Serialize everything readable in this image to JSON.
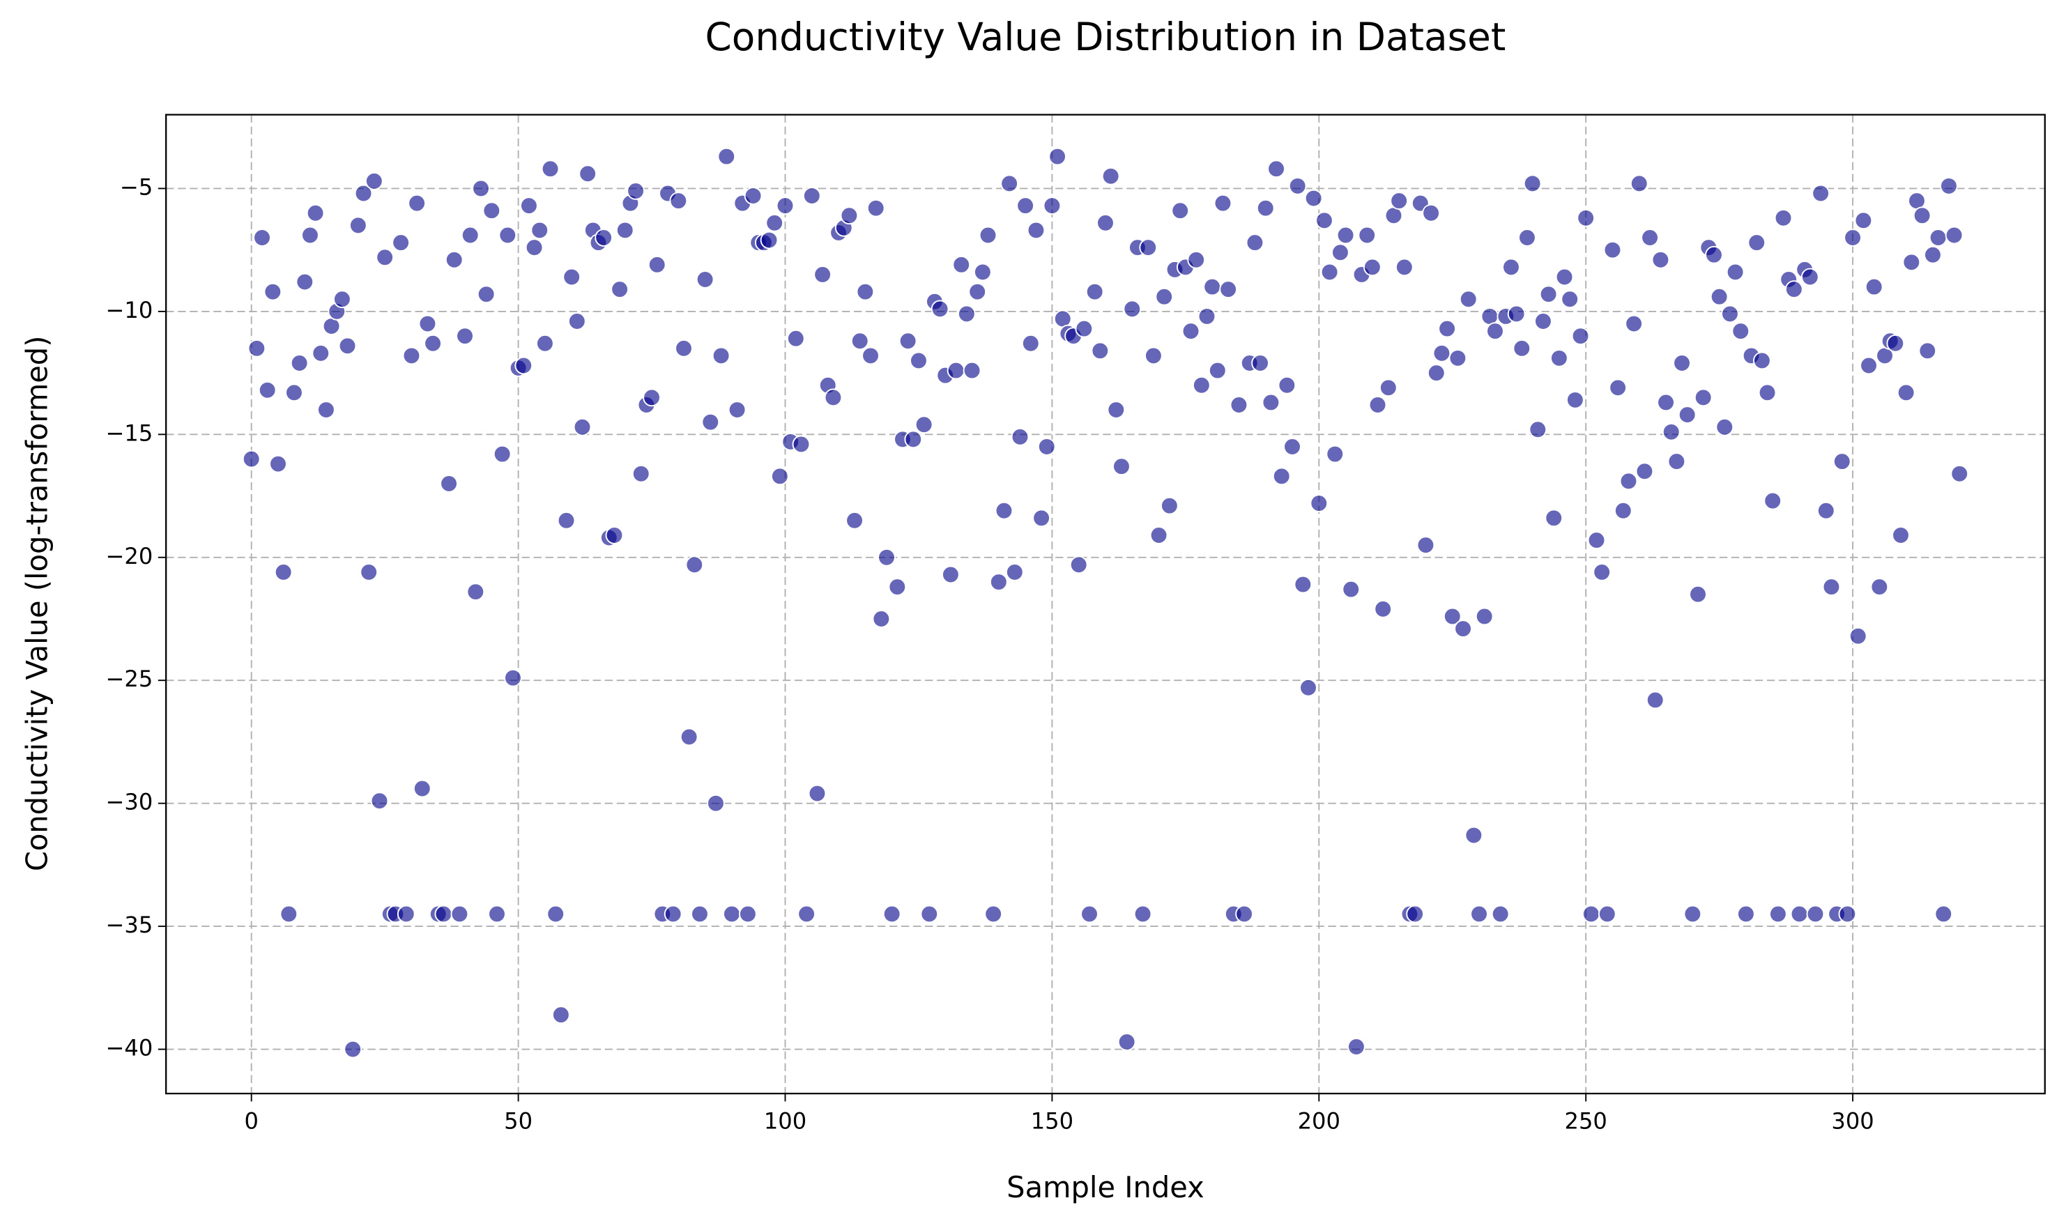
{
  "chart_data": {
    "type": "scatter",
    "title": "Conductivity Value Distribution in Dataset",
    "xlabel": "Sample Index",
    "ylabel": "Conductivity Value (log-transformed)",
    "color": "#00008b",
    "grid": true,
    "xlim": [
      -16,
      336
    ],
    "ylim": [
      -41.8,
      -2
    ],
    "xticks": [
      0,
      50,
      100,
      150,
      200,
      250,
      300
    ],
    "yticks": [
      {
        "value": -40,
        "label": "−40"
      },
      {
        "value": -35,
        "label": "−35"
      },
      {
        "value": -30,
        "label": "−30"
      },
      {
        "value": -25,
        "label": "−25"
      },
      {
        "value": -20,
        "label": "−20"
      },
      {
        "value": -15,
        "label": "−15"
      },
      {
        "value": -10,
        "label": "−10"
      },
      {
        "value": -5,
        "label": "−5"
      }
    ],
    "x": [
      0,
      1,
      2,
      3,
      4,
      5,
      6,
      7,
      8,
      9,
      10,
      11,
      12,
      13,
      14,
      15,
      16,
      17,
      18,
      19,
      20,
      21,
      22,
      23,
      24,
      25,
      26,
      27,
      28,
      29,
      30,
      31,
      32,
      33,
      34,
      35,
      36,
      37,
      38,
      39,
      40,
      41,
      42,
      43,
      44,
      45,
      46,
      47,
      48,
      49,
      50,
      51,
      52,
      53,
      54,
      55,
      56,
      57,
      58,
      59,
      60,
      61,
      62,
      63,
      64,
      65,
      66,
      67,
      68,
      69,
      70,
      71,
      72,
      73,
      74,
      75,
      76,
      77,
      78,
      79,
      80,
      81,
      82,
      83,
      84,
      85,
      86,
      87,
      88,
      89,
      90,
      91,
      92,
      93,
      94,
      95,
      96,
      97,
      98,
      99,
      100,
      101,
      102,
      103,
      104,
      105,
      106,
      107,
      108,
      109,
      110,
      111,
      112,
      113,
      114,
      115,
      116,
      117,
      118,
      119,
      120,
      121,
      122,
      123,
      124,
      125,
      126,
      127,
      128,
      129,
      130,
      131,
      132,
      133,
      134,
      135,
      136,
      137,
      138,
      139,
      140,
      141,
      142,
      143,
      144,
      145,
      146,
      147,
      148,
      149,
      150,
      151,
      152,
      153,
      154,
      155,
      156,
      157,
      158,
      159,
      160,
      161,
      162,
      163,
      164,
      165,
      166,
      167,
      168,
      169,
      170,
      171,
      172,
      173,
      174,
      175,
      176,
      177,
      178,
      179,
      180,
      181,
      182,
      183,
      184,
      185,
      186,
      187,
      188,
      189,
      190,
      191,
      192,
      193,
      194,
      195,
      196,
      197,
      198,
      199,
      200,
      201,
      202,
      203,
      204,
      205,
      206,
      207,
      208,
      209,
      210,
      211,
      212,
      213,
      214,
      215,
      216,
      217,
      218,
      219,
      220,
      221,
      222,
      223,
      224,
      225,
      226,
      227,
      228,
      229,
      230,
      231,
      232,
      233,
      234,
      235,
      236,
      237,
      238,
      239,
      240,
      241,
      242,
      243,
      244,
      245,
      246,
      247,
      248,
      249,
      250,
      251,
      252,
      253,
      254,
      255,
      256,
      257,
      258,
      259,
      260,
      261,
      262,
      263,
      264,
      265,
      266,
      267,
      268,
      269,
      270,
      271,
      272,
      273,
      274,
      275,
      276,
      277,
      278,
      279,
      280,
      281,
      282,
      283,
      284,
      285,
      286,
      287,
      288,
      289,
      290,
      291,
      292,
      293,
      294,
      295,
      296,
      297,
      298,
      299,
      300,
      301,
      302,
      303,
      304,
      305,
      306,
      307,
      308,
      309,
      310,
      311,
      312,
      313,
      314,
      315,
      316,
      317,
      318,
      319,
      320
    ],
    "values": [
      -16.0,
      -11.5,
      -7.0,
      -13.2,
      -9.2,
      -16.2,
      -20.6,
      -34.5,
      -13.3,
      -12.1,
      -8.8,
      -6.9,
      -6.0,
      -11.7,
      -14.0,
      -10.6,
      -10.0,
      -9.5,
      -11.4,
      -40.0,
      -6.5,
      -5.2,
      -20.6,
      -4.7,
      -29.9,
      -7.8,
      -34.5,
      -34.5,
      -7.2,
      -34.5,
      -11.8,
      -5.6,
      -29.4,
      -10.5,
      -11.3,
      -34.5,
      -34.5,
      -17.0,
      -7.9,
      -34.5,
      -11.0,
      -6.9,
      -21.4,
      -5.0,
      -9.3,
      -5.9,
      -34.5,
      -15.8,
      -6.9,
      -24.9,
      -12.3,
      -12.2,
      -5.7,
      -7.4,
      -6.7,
      -11.3,
      -4.2,
      -34.5,
      -38.6,
      -18.5,
      -8.6,
      -10.4,
      -14.7,
      -4.4,
      -6.7,
      -7.2,
      -7.0,
      -19.2,
      -19.1,
      -9.1,
      -6.7,
      -5.6,
      -5.1,
      -16.6,
      -13.8,
      -13.5,
      -8.1,
      -34.5,
      -5.2,
      -34.5,
      -5.5,
      -11.5,
      -27.3,
      -20.3,
      -34.5,
      -8.7,
      -14.5,
      -30.0,
      -11.8,
      -3.7,
      -34.5,
      -14.0,
      -5.6,
      -34.5,
      -5.3,
      -7.2,
      -7.2,
      -7.1,
      -6.4,
      -16.7,
      -5.7,
      -15.3,
      -11.1,
      -15.4,
      -34.5,
      -5.3,
      -29.6,
      -8.5,
      -13.0,
      -13.5,
      -6.8,
      -6.6,
      -6.1,
      -18.5,
      -11.2,
      -9.2,
      -11.8,
      -5.8,
      -22.5,
      -20.0,
      -34.5,
      -21.2,
      -15.2,
      -11.2,
      -15.2,
      -12.0,
      -14.6,
      -34.5,
      -9.6,
      -9.9,
      -12.6,
      -20.7,
      -12.4,
      -8.1,
      -10.1,
      -12.4,
      -9.2,
      -8.4,
      -6.9,
      -34.5,
      -21.0,
      -18.1,
      -4.8,
      -20.6,
      -15.1,
      -5.7,
      -11.3,
      -6.7,
      -18.4,
      -15.5,
      -5.7,
      -3.7,
      -10.3,
      -10.9,
      -11.0,
      -20.3,
      -10.7,
      -34.5,
      -9.2,
      -11.6,
      -6.4,
      -4.5,
      -14.0,
      -16.3,
      -39.7,
      -9.9,
      -7.4,
      -34.5,
      -7.4,
      -11.8,
      -19.1,
      -9.4,
      -17.9,
      -8.3,
      -5.9,
      -8.2,
      -10.8,
      -7.9,
      -13.0,
      -10.2,
      -9.0,
      -12.4,
      -5.6,
      -9.1,
      -34.5,
      -13.8,
      -34.5,
      -12.1,
      -7.2,
      -12.1,
      -5.8,
      -13.7,
      -4.2,
      -16.7,
      -13.0,
      -15.5,
      -4.9,
      -21.1,
      -25.3,
      -5.4,
      -17.8,
      -6.3,
      -8.4,
      -15.8,
      -7.6,
      -6.9,
      -21.3,
      -39.9,
      -8.5,
      -6.9,
      -8.2,
      -13.8,
      -22.1,
      -13.1,
      -6.1,
      -5.5,
      -8.2,
      -34.5,
      -34.5,
      -5.6,
      -19.5,
      -6.0,
      -12.5,
      -11.7,
      -10.7,
      -22.4,
      -11.9,
      -22.9,
      -9.5,
      -31.3,
      -34.5,
      -22.4,
      -10.2,
      -10.8,
      -34.5,
      -10.2,
      -8.2,
      -10.1,
      -11.5,
      -7.0,
      -4.8,
      -14.8,
      -10.4,
      -9.3,
      -18.4,
      -11.9,
      -8.6,
      -9.5,
      -13.6,
      -11.0,
      -6.2,
      -34.5,
      -19.3,
      -20.6,
      -34.5,
      -7.5,
      -13.1,
      -18.1,
      -16.9,
      -10.5,
      -4.8,
      -16.5,
      -7.0,
      -25.8,
      -7.9,
      -13.7,
      -14.9,
      -16.1,
      -12.1,
      -14.2,
      -34.5,
      -21.5,
      -13.5,
      -7.4,
      -7.7,
      -9.4,
      -14.7,
      -10.1,
      -8.4,
      -10.8,
      -34.5,
      -11.8,
      -7.2,
      -12.0,
      -13.3,
      -17.7,
      -34.5,
      -6.2,
      -8.7,
      -9.1,
      -34.5,
      -8.3,
      -8.6,
      -34.5,
      -5.2,
      -18.1,
      -21.2,
      -34.5,
      -16.1,
      -34.5,
      -7.0,
      -23.2,
      -6.3,
      -12.2,
      -9.0,
      -21.2,
      -11.8,
      -11.2,
      -11.3,
      -19.1,
      -13.3,
      -8.0,
      -5.5,
      -6.1,
      -11.6,
      -7.7,
      -7.0,
      -34.5,
      -4.9,
      -6.9,
      -16.6
    ]
  }
}
